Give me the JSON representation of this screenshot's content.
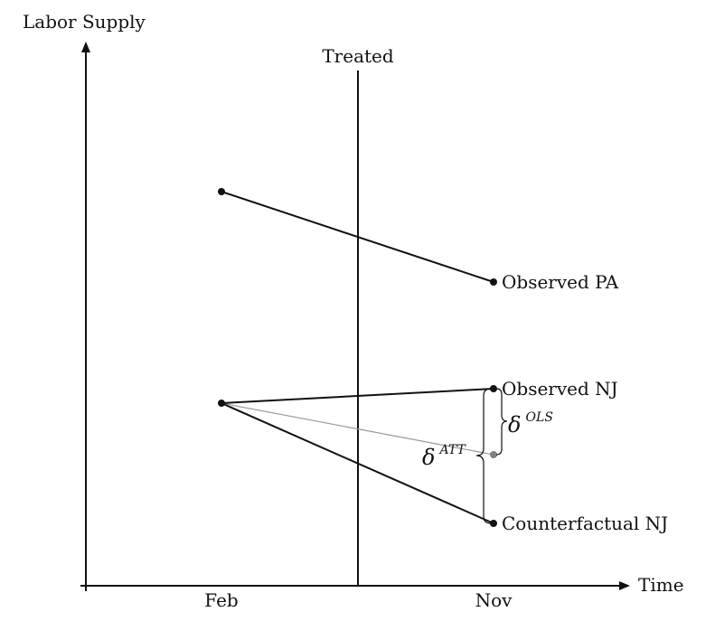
{
  "axes": {
    "y_label": "Labor Supply",
    "x_label": "Time",
    "x_ticks": [
      "Feb",
      "Nov"
    ]
  },
  "treatment_line": {
    "label": "Treated"
  },
  "lines": [
    {
      "label": "Observed PA",
      "style": "solid"
    },
    {
      "label": "Observed NJ",
      "style": "solid"
    },
    {
      "label": "Counterfactual NJ",
      "style": "solid"
    },
    {
      "label": "",
      "style": "gray"
    }
  ],
  "annotations": {
    "delta_ols_symbol": "δ",
    "delta_ols_sup": "OLS",
    "delta_att_symbol": "δ",
    "delta_att_sup": "ATT"
  },
  "colors": {
    "ink": "#111111",
    "gray_line": "#999999",
    "gray_point": "#808080"
  }
}
